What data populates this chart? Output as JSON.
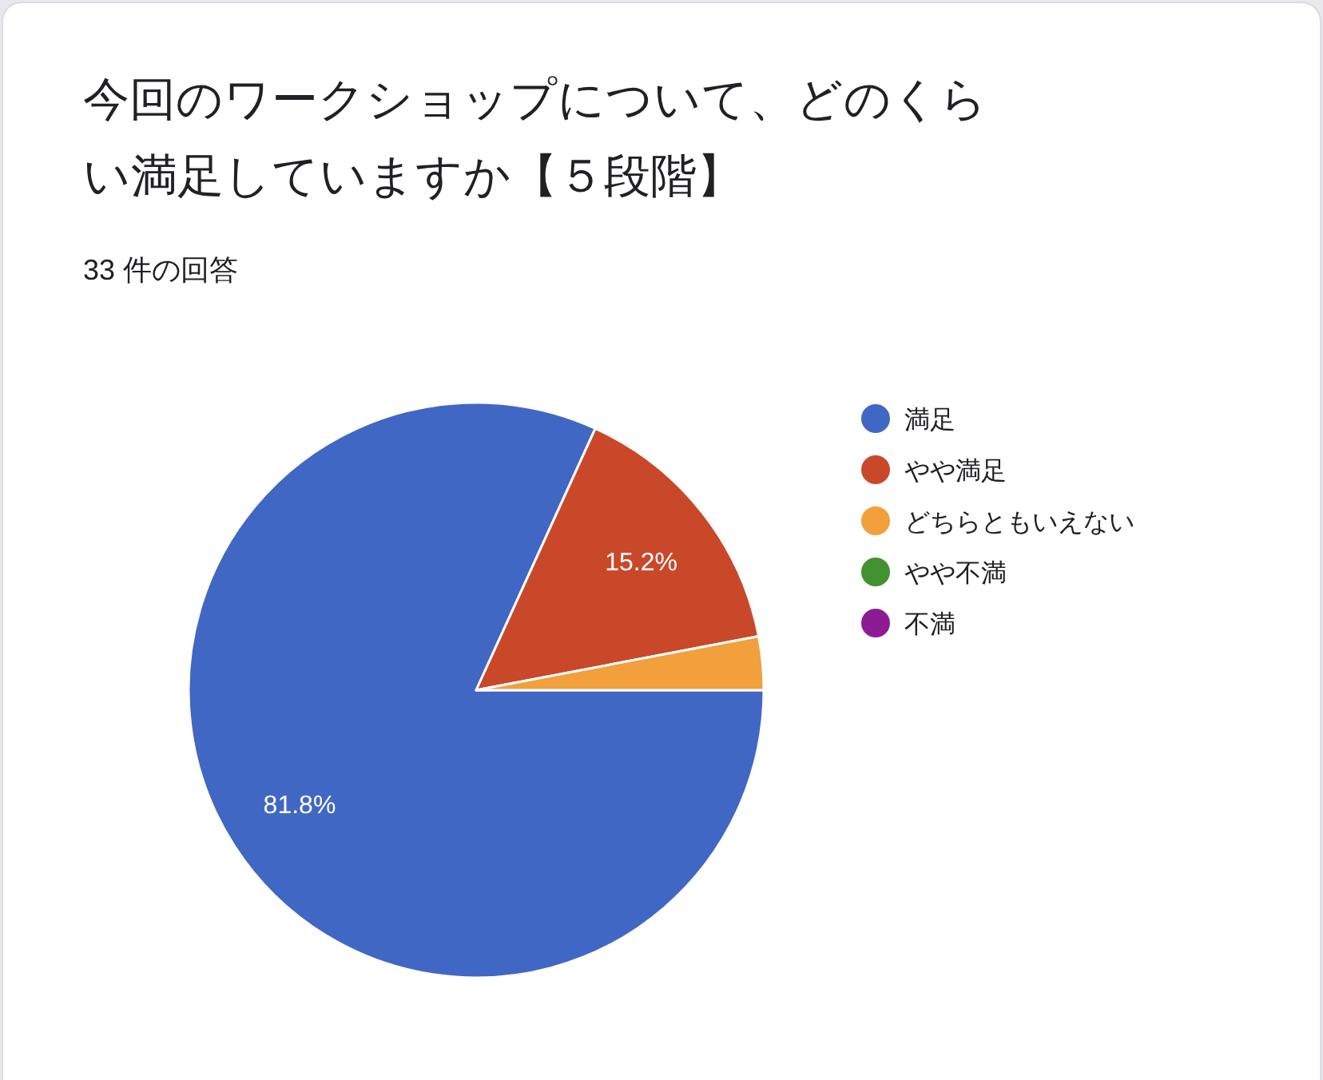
{
  "chart_data": {
    "type": "pie",
    "title": "今回のワークショップについて、どのくらい満足していますか【５段階】",
    "subtitle": "33 件の回答",
    "categories": [
      "満足",
      "やや満足",
      "どちらともいえない",
      "やや不満",
      "不満"
    ],
    "values": [
      81.8,
      15.2,
      3.0,
      0,
      0
    ],
    "colors": [
      "#4167c5",
      "#c9482a",
      "#f1a03b",
      "#43912f",
      "#8d1c94"
    ],
    "value_labels": [
      "81.8%",
      "15.2%",
      null,
      null,
      null
    ],
    "legend": "right"
  }
}
